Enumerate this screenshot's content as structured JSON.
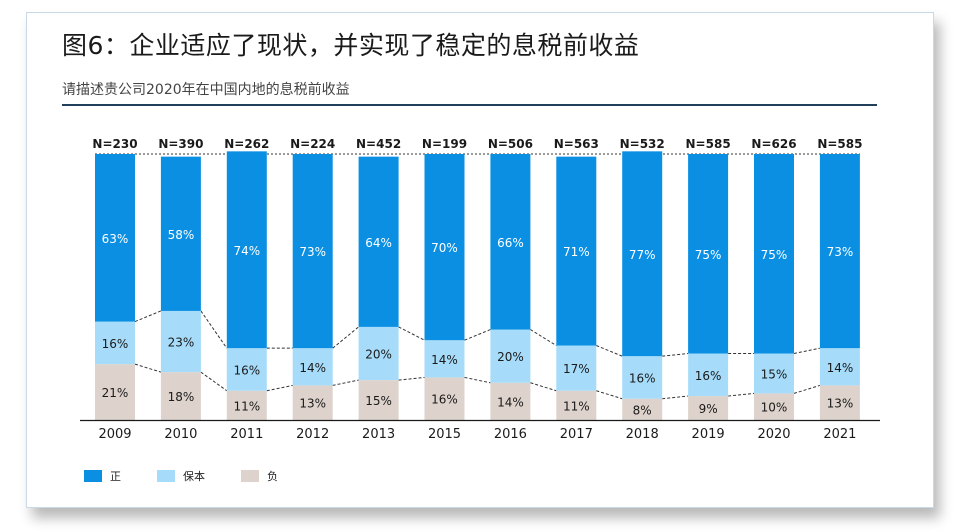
{
  "header": {
    "title": "图6：企业适应了现状，并实现了稳定的息税前收益",
    "subtitle": "请描述贵公司2020年在中国内地的息税前收益"
  },
  "colors": {
    "positive": "#0a8fe3",
    "breakeven": "#a6dcfa",
    "negative": "#ddd3cc"
  },
  "legend": [
    {
      "key": "positive",
      "label": "正"
    },
    {
      "key": "breakeven",
      "label": "保本"
    },
    {
      "key": "negative",
      "label": "负"
    }
  ],
  "chart_data": {
    "type": "bar",
    "stacked": true,
    "percent_stacked": true,
    "title": "图6：企业适应了现状，并实现了稳定的息税前收益",
    "subtitle": "请描述贵公司2020年在中国内地的息税前收益",
    "xlabel": "",
    "ylabel": "",
    "ylim": [
      0,
      100
    ],
    "categories": [
      "2009",
      "2010",
      "2011",
      "2012",
      "2013",
      "2015",
      "2016",
      "2017",
      "2018",
      "2019",
      "2020",
      "2021"
    ],
    "sample_sizes": [
      "N=230",
      "N=390",
      "N=262",
      "N=224",
      "N=452",
      "N=199",
      "N=506",
      "N=563",
      "N=532",
      "N=585",
      "N=626",
      "N=585"
    ],
    "series": [
      {
        "name": "负",
        "key": "negative",
        "values": [
          21,
          18,
          11,
          13,
          15,
          16,
          14,
          11,
          8,
          9,
          10,
          13
        ]
      },
      {
        "name": "保本",
        "key": "breakeven",
        "values": [
          16,
          23,
          16,
          14,
          20,
          14,
          20,
          17,
          16,
          16,
          15,
          14
        ]
      },
      {
        "name": "正",
        "key": "positive",
        "values": [
          63,
          58,
          74,
          73,
          64,
          70,
          66,
          71,
          77,
          75,
          75,
          73
        ]
      }
    ],
    "legend_position": "bottom-left",
    "connector_lines": "dashed"
  }
}
